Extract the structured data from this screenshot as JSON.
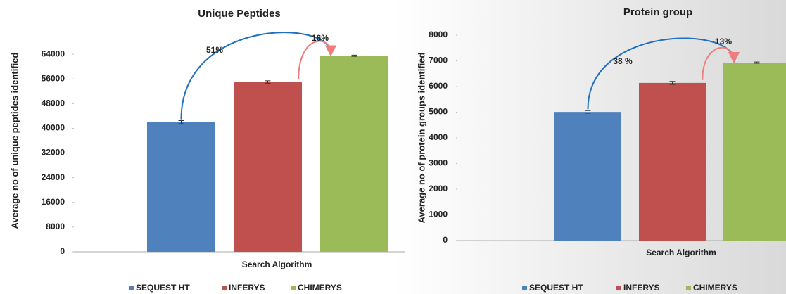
{
  "chart_data": [
    {
      "type": "bar",
      "title": "Unique Peptides",
      "xlabel": "Search Algorithm",
      "ylabel": "Average no of unique peptides identified",
      "categories": [
        null
      ],
      "series": [
        {
          "name": "SEQUEST HT",
          "color": "#4f81bd",
          "values": [
            42000
          ],
          "errors": [
            500
          ]
        },
        {
          "name": "INFERYS",
          "color": "#c0504d",
          "values": [
            55000
          ],
          "errors": [
            400
          ]
        },
        {
          "name": "CHIMERYS",
          "color": "#9bbb59",
          "values": [
            63500
          ],
          "errors": [
            200
          ]
        }
      ],
      "ylim": [
        0,
        72000
      ],
      "yticks": [
        0,
        8000,
        16000,
        24000,
        32000,
        40000,
        48000,
        56000,
        64000
      ],
      "annotations": [
        "51%",
        "16%"
      ],
      "legend": "bottom"
    },
    {
      "type": "bar",
      "title": "Protein group",
      "xlabel": "Search Algorithm",
      "ylabel": "Average no of protein groups identified",
      "categories": [
        null
      ],
      "series": [
        {
          "name": "SEQUEST HT",
          "color": "#4f81bd",
          "values": [
            5010
          ],
          "errors": [
            50
          ]
        },
        {
          "name": "INFERYS",
          "color": "#c0504d",
          "values": [
            6140
          ],
          "errors": [
            60
          ]
        },
        {
          "name": "CHIMERYS",
          "color": "#9bbb59",
          "values": [
            6930
          ],
          "errors": [
            25
          ]
        }
      ],
      "ylim": [
        0,
        8000
      ],
      "yticks": [
        0,
        1000,
        2000,
        3000,
        4000,
        5000,
        6000,
        7000,
        8000
      ],
      "annotations": [
        "38 %",
        "13%"
      ],
      "legend": "bottom"
    }
  ]
}
